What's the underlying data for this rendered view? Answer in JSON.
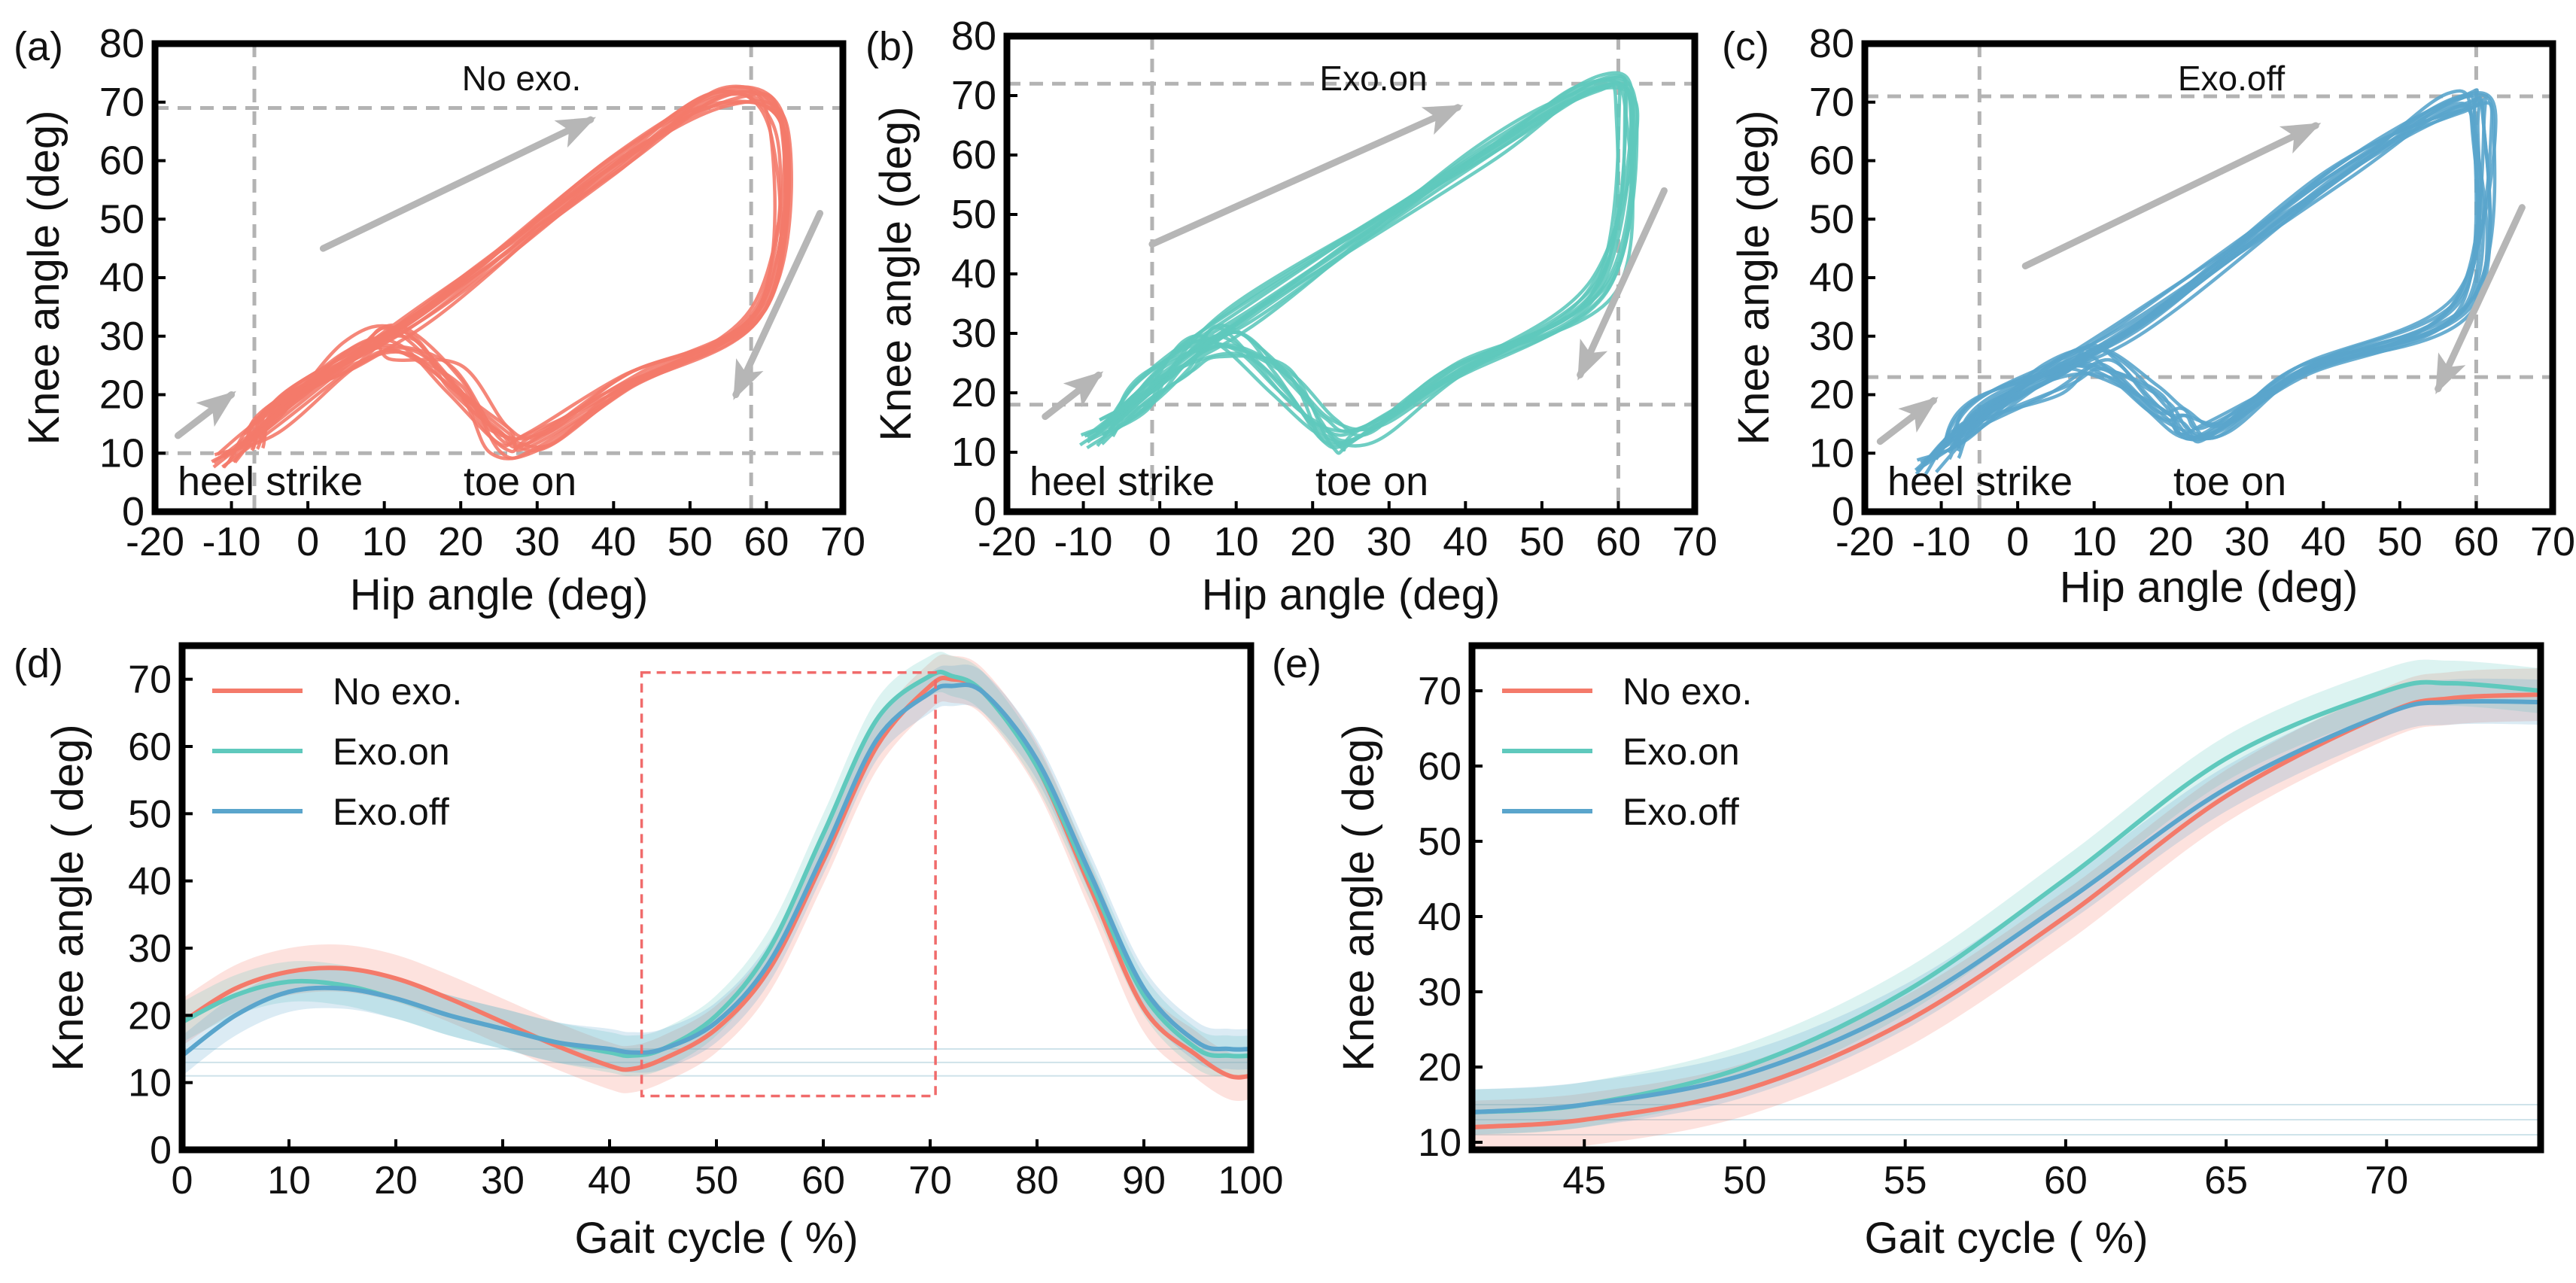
{
  "colors": {
    "no_exo": "#f47a6a",
    "exo_on": "#5fc9bd",
    "exo_off": "#5aa5cc",
    "ref_line": "#b3b3b3",
    "arrow": "#b6b6b6",
    "zoom_box": "#f06b6b",
    "axis": "#000000"
  },
  "chart_data": [
    {
      "id": "a",
      "panel_label": "(a)",
      "type": "line",
      "title": "No exo.",
      "xlabel": "Hip angle (deg)",
      "ylabel": "Knee angle (deg)",
      "xlim": [
        -20,
        70
      ],
      "ylim": [
        0,
        80
      ],
      "xticks": [
        "-20",
        "-10",
        "0",
        "10",
        "20",
        "30",
        "40",
        "50",
        "60",
        "70"
      ],
      "yticks": [
        "0",
        "10",
        "20",
        "30",
        "40",
        "50",
        "60",
        "70",
        "80"
      ],
      "series_color_key": "no_exo",
      "reference_lines": {
        "vertical": [
          -7,
          58
        ],
        "horizontal": [
          10,
          69
        ]
      },
      "annotations": [
        "heel strike",
        "toe on"
      ],
      "loop": {
        "start": [
          -11,
          9
        ],
        "bump_peak": [
          12,
          29
        ],
        "valley": [
          30,
          12
        ],
        "peak": [
          55,
          71
        ],
        "max_hip": [
          62,
          65
        ],
        "end": [
          -7,
          12
        ],
        "cycles": 12
      }
    },
    {
      "id": "b",
      "panel_label": "(b)",
      "type": "line",
      "title": "Exo.on",
      "xlabel": "Hip angle (deg)",
      "ylabel": "Knee angle (deg)",
      "xlim": [
        -20,
        70
      ],
      "ylim": [
        0,
        80
      ],
      "xticks": [
        "-20",
        "-10",
        "0",
        "10",
        "20",
        "30",
        "40",
        "50",
        "60",
        "70"
      ],
      "yticks": [
        "0",
        "10",
        "20",
        "30",
        "40",
        "50",
        "60",
        "70",
        "80"
      ],
      "series_color_key": "exo_on",
      "reference_lines": {
        "vertical": [
          -1,
          60
        ],
        "horizontal": [
          18,
          72
        ]
      },
      "annotations": [
        "heel strike",
        "toe on"
      ],
      "loop": {
        "start": [
          -9,
          12
        ],
        "bump_peak": [
          9,
          29
        ],
        "valley": [
          27,
          13
        ],
        "peak": [
          57,
          72
        ],
        "max_hip": [
          61,
          68
        ],
        "end": [
          -7,
          14
        ],
        "cycles": 12
      }
    },
    {
      "id": "c",
      "panel_label": "(c)",
      "type": "line",
      "title": "Exo.off",
      "xlabel": "Hip angle (deg)",
      "ylabel": "Knee angle (deg)",
      "xlim": [
        -20,
        70
      ],
      "ylim": [
        0,
        80
      ],
      "xticks": [
        "-20",
        "-10",
        "0",
        "10",
        "20",
        "30",
        "40",
        "50",
        "60",
        "70"
      ],
      "yticks": [
        "0",
        "10",
        "20",
        "30",
        "40",
        "50",
        "60",
        "70",
        "80"
      ],
      "series_color_key": "exo_off",
      "reference_lines": {
        "vertical": [
          -5,
          60
        ],
        "horizontal": [
          23,
          71
        ]
      },
      "annotations": [
        "heel strike",
        "toe on"
      ],
      "loop": {
        "start": [
          -12,
          8
        ],
        "bump_peak": [
          11,
          26
        ],
        "valley": [
          26,
          14
        ],
        "peak": [
          57,
          70
        ],
        "max_hip": [
          61,
          66
        ],
        "end": [
          -9,
          10
        ],
        "cycles": 12
      }
    },
    {
      "id": "d",
      "panel_label": "(d)",
      "type": "line",
      "xlabel": "Gait cycle (  %)",
      "ylabel": "Knee angle (   deg)",
      "xlim": [
        0,
        100
      ],
      "ylim": [
        0,
        75
      ],
      "xticks": [
        "0",
        "10",
        "20",
        "30",
        "40",
        "50",
        "60",
        "70",
        "80",
        "90",
        "100"
      ],
      "yticks": [
        "0",
        "10",
        "20",
        "30",
        "40",
        "50",
        "60",
        "70"
      ],
      "legend": [
        "No exo.",
        "Exo.on",
        "Exo.off"
      ],
      "legend_position": "top-left",
      "zoom_box": {
        "x": [
          43,
          70.5
        ],
        "y": [
          8,
          71
        ]
      },
      "x": [
        0,
        5,
        10,
        15,
        20,
        25,
        30,
        35,
        40,
        42,
        45,
        50,
        55,
        60,
        65,
        70,
        72,
        75,
        80,
        85,
        90,
        95,
        98,
        100
      ],
      "series": [
        {
          "name": "No exo.",
          "color_key": "no_exo",
          "values": [
            19,
            24,
            26.5,
            27,
            25.5,
            22.5,
            19,
            15.5,
            12.5,
            12,
            13.5,
            18,
            27,
            43,
            60,
            69,
            70,
            68,
            57,
            39,
            21,
            14,
            11,
            11
          ],
          "band": 3.5
        },
        {
          "name": "Exo.on",
          "color_key": "exo_on",
          "values": [
            19,
            23,
            25,
            24.5,
            22.5,
            20,
            18,
            16,
            14.5,
            14,
            15,
            20,
            30,
            47,
            64,
            70.5,
            70.5,
            68,
            57,
            40,
            23,
            15,
            14,
            14
          ],
          "band": 3
        },
        {
          "name": "Exo.off",
          "color_key": "exo_off",
          "values": [
            14,
            20,
            23.5,
            24,
            22.5,
            20,
            18,
            16,
            15,
            14.5,
            15,
            19,
            28,
            44,
            61,
            68,
            69,
            68,
            58,
            41,
            24,
            16,
            15,
            15
          ],
          "band": 3
        }
      ]
    },
    {
      "id": "e",
      "panel_label": "(e)",
      "type": "line",
      "xlabel": "Gait cycle (  %)",
      "ylabel": "Knee angle (   deg)",
      "xlim": [
        41.5,
        74.8
      ],
      "ylim": [
        9,
        76
      ],
      "xticks": [
        "45",
        "50",
        "55",
        "60",
        "65",
        "70"
      ],
      "yticks": [
        "10",
        "20",
        "30",
        "40",
        "50",
        "60",
        "70"
      ],
      "legend": [
        "No exo.",
        "Exo.on",
        "Exo.off"
      ],
      "legend_position": "top-left",
      "x": [
        41.5,
        45,
        50,
        55,
        60,
        65,
        70,
        72,
        74.8
      ],
      "series": [
        {
          "name": "No exo.",
          "color_key": "no_exo",
          "values": [
            12,
            13,
            17,
            26,
            40,
            56,
            67,
            69,
            69.5
          ],
          "band": 3.5
        },
        {
          "name": "Exo.on",
          "color_key": "exo_on",
          "values": [
            14,
            15,
            20,
            30,
            45,
            61,
            70,
            71,
            70
          ],
          "band": 3
        },
        {
          "name": "Exo.off",
          "color_key": "exo_off",
          "values": [
            14,
            15,
            19,
            28,
            42,
            57,
            67,
            68.5,
            68.5
          ],
          "band": 3
        }
      ]
    }
  ]
}
